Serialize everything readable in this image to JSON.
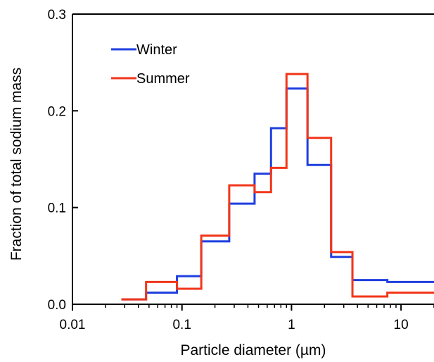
{
  "chart_data": {
    "type": "line",
    "step": true,
    "title": "",
    "xlabel": "Particle diameter (µm)",
    "ylabel": "Fraction of total sodium mass",
    "x_scale": "log",
    "xlim": [
      0.01,
      20
    ],
    "ylim": [
      0,
      0.3
    ],
    "x_ticks": [
      {
        "value": 0.01,
        "label": "0.01"
      },
      {
        "value": 0.1,
        "label": "0.1"
      },
      {
        "value": 1,
        "label": "1"
      },
      {
        "value": 10,
        "label": "10"
      }
    ],
    "y_ticks": [
      {
        "value": 0,
        "label": "0.0"
      },
      {
        "value": 0.1,
        "label": "0.1"
      },
      {
        "value": 0.2,
        "label": "0.2"
      },
      {
        "value": 0.3,
        "label": "0.3"
      }
    ],
    "bin_edges": [
      0.028,
      0.047,
      0.09,
      0.15,
      0.27,
      0.46,
      0.65,
      0.9,
      1.4,
      2.3,
      3.6,
      7.5,
      20
    ],
    "series": [
      {
        "name": "Winter",
        "color": "#1f3fdf",
        "values": [
          0.005,
          0.012,
          0.029,
          0.065,
          0.104,
          0.135,
          0.182,
          0.223,
          0.144,
          0.049,
          0.025,
          0.023
        ]
      },
      {
        "name": "Summer",
        "color": "#f2361a",
        "values": [
          0.005,
          0.023,
          0.016,
          0.071,
          0.123,
          0.116,
          0.141,
          0.238,
          0.172,
          0.054,
          0.008,
          0.012
        ]
      }
    ],
    "legend": "top-left",
    "grid": false
  }
}
